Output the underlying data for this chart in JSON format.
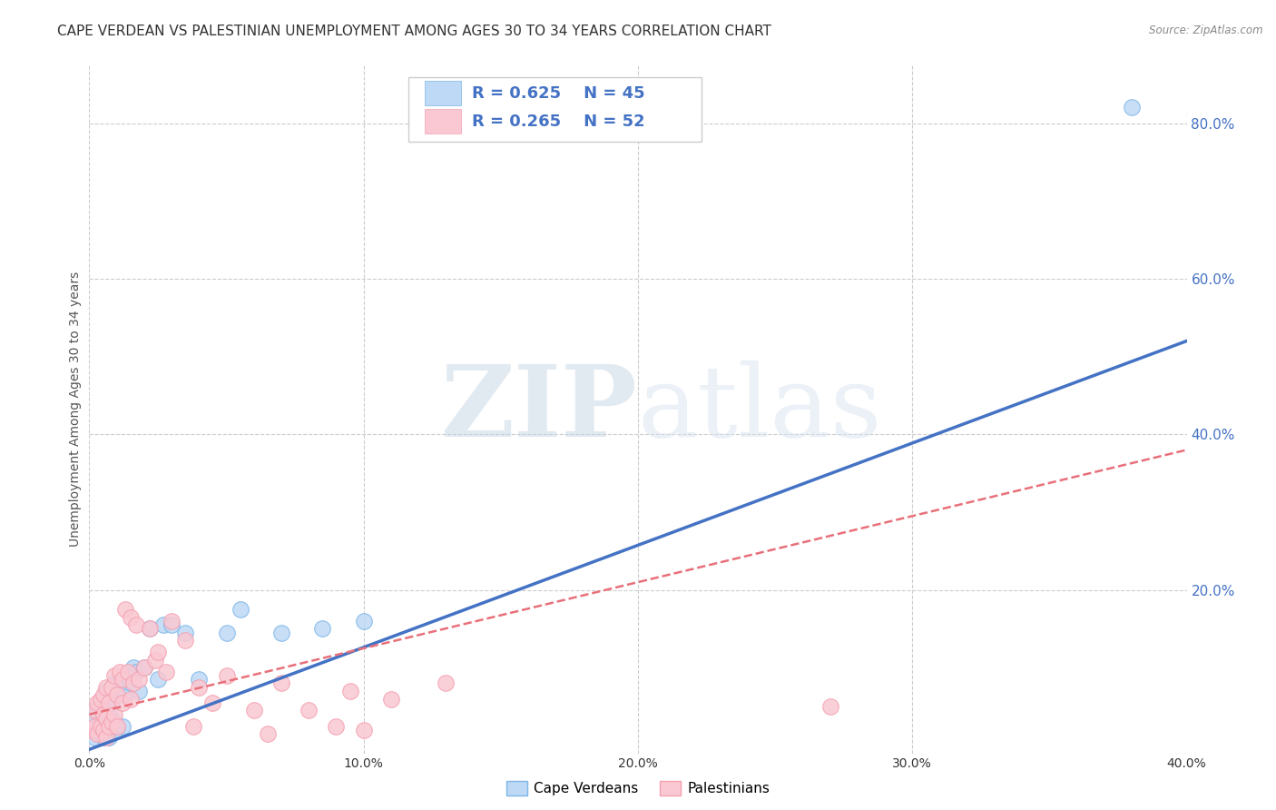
{
  "title": "CAPE VERDEAN VS PALESTINIAN UNEMPLOYMENT AMONG AGES 30 TO 34 YEARS CORRELATION CHART",
  "source": "Source: ZipAtlas.com",
  "ylabel": "Unemployment Among Ages 30 to 34 years",
  "xlim": [
    0.0,
    0.4
  ],
  "ylim": [
    -0.01,
    0.875
  ],
  "xtick_labels": [
    "0.0%",
    "",
    "10.0%",
    "",
    "20.0%",
    "",
    "30.0%",
    "",
    "40.0%"
  ],
  "xtick_vals": [
    0.0,
    0.05,
    0.1,
    0.15,
    0.2,
    0.25,
    0.3,
    0.35,
    0.4
  ],
  "ytick_labels_right": [
    "20.0%",
    "40.0%",
    "60.0%",
    "80.0%"
  ],
  "ytick_vals_right": [
    0.2,
    0.4,
    0.6,
    0.8
  ],
  "blue_color": "#7EB6E8",
  "blue_fill": "#BDD9F5",
  "pink_color": "#F4A0B0",
  "pink_fill": "#FAC8D2",
  "blue_line_color": "#4472C4",
  "pink_line_color": "#E8707A",
  "watermark_color": "#D0DFF0",
  "legend_R1": "R = 0.625",
  "legend_N1": "N = 45",
  "legend_R2": "R = 0.265",
  "legend_N2": "N = 52",
  "legend_label1": "Cape Verdeans",
  "legend_label2": "Palestinians",
  "blue_scatter_x": [
    0.001,
    0.002,
    0.002,
    0.003,
    0.003,
    0.004,
    0.004,
    0.004,
    0.005,
    0.005,
    0.005,
    0.006,
    0.006,
    0.006,
    0.007,
    0.007,
    0.007,
    0.008,
    0.008,
    0.009,
    0.009,
    0.01,
    0.01,
    0.011,
    0.012,
    0.012,
    0.013,
    0.014,
    0.015,
    0.016,
    0.017,
    0.018,
    0.02,
    0.022,
    0.025,
    0.027,
    0.03,
    0.035,
    0.04,
    0.05,
    0.055,
    0.07,
    0.085,
    0.1,
    0.38
  ],
  "blue_scatter_y": [
    0.02,
    0.01,
    0.035,
    0.025,
    0.045,
    0.015,
    0.03,
    0.055,
    0.01,
    0.03,
    0.06,
    0.02,
    0.05,
    0.07,
    0.01,
    0.04,
    0.065,
    0.025,
    0.055,
    0.03,
    0.08,
    0.02,
    0.065,
    0.08,
    0.025,
    0.08,
    0.065,
    0.09,
    0.08,
    0.1,
    0.095,
    0.07,
    0.1,
    0.15,
    0.085,
    0.155,
    0.155,
    0.145,
    0.085,
    0.145,
    0.175,
    0.145,
    0.15,
    0.16,
    0.82
  ],
  "pink_scatter_x": [
    0.001,
    0.002,
    0.002,
    0.003,
    0.003,
    0.004,
    0.004,
    0.005,
    0.005,
    0.005,
    0.006,
    0.006,
    0.006,
    0.007,
    0.007,
    0.008,
    0.008,
    0.009,
    0.009,
    0.01,
    0.01,
    0.011,
    0.012,
    0.012,
    0.013,
    0.014,
    0.015,
    0.015,
    0.016,
    0.017,
    0.018,
    0.02,
    0.022,
    0.024,
    0.025,
    0.028,
    0.03,
    0.035,
    0.038,
    0.04,
    0.045,
    0.05,
    0.06,
    0.065,
    0.07,
    0.08,
    0.09,
    0.095,
    0.1,
    0.11,
    0.13,
    0.27
  ],
  "pink_scatter_y": [
    0.02,
    0.025,
    0.045,
    0.015,
    0.055,
    0.025,
    0.06,
    0.02,
    0.04,
    0.065,
    0.01,
    0.035,
    0.075,
    0.025,
    0.055,
    0.03,
    0.075,
    0.04,
    0.09,
    0.025,
    0.065,
    0.095,
    0.055,
    0.085,
    0.175,
    0.095,
    0.06,
    0.165,
    0.08,
    0.155,
    0.085,
    0.1,
    0.15,
    0.11,
    0.12,
    0.095,
    0.16,
    0.135,
    0.025,
    0.075,
    0.055,
    0.09,
    0.045,
    0.015,
    0.08,
    0.045,
    0.025,
    0.07,
    0.02,
    0.06,
    0.08,
    0.05
  ],
  "blue_trend_x": [
    0.0,
    0.4
  ],
  "blue_trend_y": [
    -0.005,
    0.52
  ],
  "pink_trend_x": [
    0.0,
    0.4
  ],
  "pink_trend_y": [
    0.04,
    0.38
  ],
  "grid_color": "#CCCCCC",
  "title_fontsize": 11,
  "axis_label_fontsize": 10,
  "tick_fontsize": 10,
  "background_color": "#FFFFFF"
}
